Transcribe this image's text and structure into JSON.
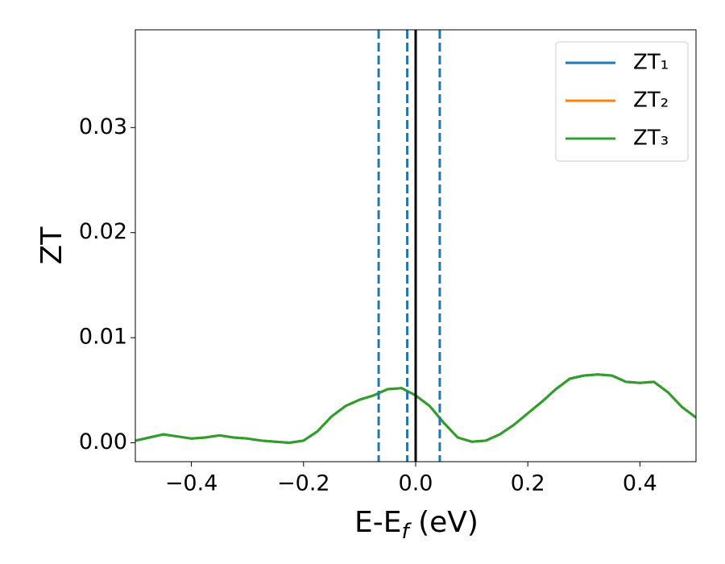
{
  "chart_data": {
    "type": "line",
    "xlabel": {
      "text": "E-E",
      "sub": "f",
      "tail": " (eV)"
    },
    "ylabel": "ZT",
    "x": [
      -0.5,
      -0.475,
      -0.45,
      -0.425,
      -0.4,
      -0.375,
      -0.35,
      -0.325,
      -0.3,
      -0.275,
      -0.25,
      -0.225,
      -0.2,
      -0.175,
      -0.15,
      -0.125,
      -0.1,
      -0.075,
      -0.05,
      -0.025,
      0,
      0.025,
      0.05,
      0.075,
      0.1,
      0.125,
      0.15,
      0.175,
      0.2,
      0.225,
      0.25,
      0.275,
      0.3,
      0.325,
      0.35,
      0.375,
      0.4,
      0.425,
      0.45,
      0.475,
      0.5
    ],
    "series": [
      {
        "name": "ZT₁",
        "color": "#1f77b4",
        "values": [
          0.0002,
          0.0005,
          0.0008,
          0.0006,
          0.0004,
          0.0005,
          0.0007,
          0.0005,
          0.0004,
          0.0002,
          0.0001,
          0.0,
          0.0002,
          0.0011,
          0.0025,
          0.0035,
          0.0041,
          0.0045,
          0.0051,
          0.0052,
          0.0045,
          0.0035,
          0.0019,
          0.0005,
          0.0001,
          0.0002,
          0.0008,
          0.0017,
          0.0028,
          0.0039,
          0.0051,
          0.0061,
          0.0064,
          0.0065,
          0.0064,
          0.0058,
          0.0057,
          0.0058,
          0.0048,
          0.0034,
          0.0024
        ]
      },
      {
        "name": "ZT₂",
        "color": "#ff7f0e",
        "values": [
          0.0002,
          0.0005,
          0.0008,
          0.0006,
          0.0004,
          0.0005,
          0.0007,
          0.0005,
          0.0004,
          0.0002,
          0.0001,
          0.0,
          0.0002,
          0.0011,
          0.0025,
          0.0035,
          0.0041,
          0.0045,
          0.0051,
          0.0052,
          0.0045,
          0.0035,
          0.0019,
          0.0005,
          0.0001,
          0.0002,
          0.0008,
          0.0017,
          0.0028,
          0.0039,
          0.0051,
          0.0061,
          0.0064,
          0.0065,
          0.0064,
          0.0058,
          0.0057,
          0.0058,
          0.0048,
          0.0034,
          0.0024
        ]
      },
      {
        "name": "ZT₃",
        "color": "#2ca02c",
        "values": [
          0.0002,
          0.0005,
          0.0008,
          0.0006,
          0.0004,
          0.0005,
          0.0007,
          0.0005,
          0.0004,
          0.0002,
          0.0001,
          0.0,
          0.0002,
          0.0011,
          0.0025,
          0.0035,
          0.0041,
          0.0045,
          0.0051,
          0.0052,
          0.0045,
          0.0035,
          0.0019,
          0.0005,
          0.0001,
          0.0002,
          0.0008,
          0.0017,
          0.0028,
          0.0039,
          0.0051,
          0.0061,
          0.0064,
          0.0065,
          0.0064,
          0.0058,
          0.0057,
          0.0058,
          0.0048,
          0.0034,
          0.0024
        ]
      }
    ],
    "vlines": [
      {
        "x": -0.066,
        "color": "#1f77b4",
        "dashed": true
      },
      {
        "x": -0.015,
        "color": "#1f77b4",
        "dashed": true
      },
      {
        "x": 0.043,
        "color": "#1f77b4",
        "dashed": true
      },
      {
        "x": 0,
        "color": "#000000",
        "dashed": false
      }
    ],
    "xlim": [
      -0.5,
      0.5
    ],
    "ylim": [
      -0.0018,
      0.0393
    ],
    "xticks": [
      {
        "value": -0.4,
        "label": "−0.4"
      },
      {
        "value": -0.2,
        "label": "−0.2"
      },
      {
        "value": 0,
        "label": "0.0"
      },
      0.2,
      0.4
    ],
    "yticks": [
      {
        "value": 0,
        "label": "0.00"
      },
      0.01,
      0.02,
      0.03
    ],
    "legend": "upper right",
    "grid": false
  }
}
